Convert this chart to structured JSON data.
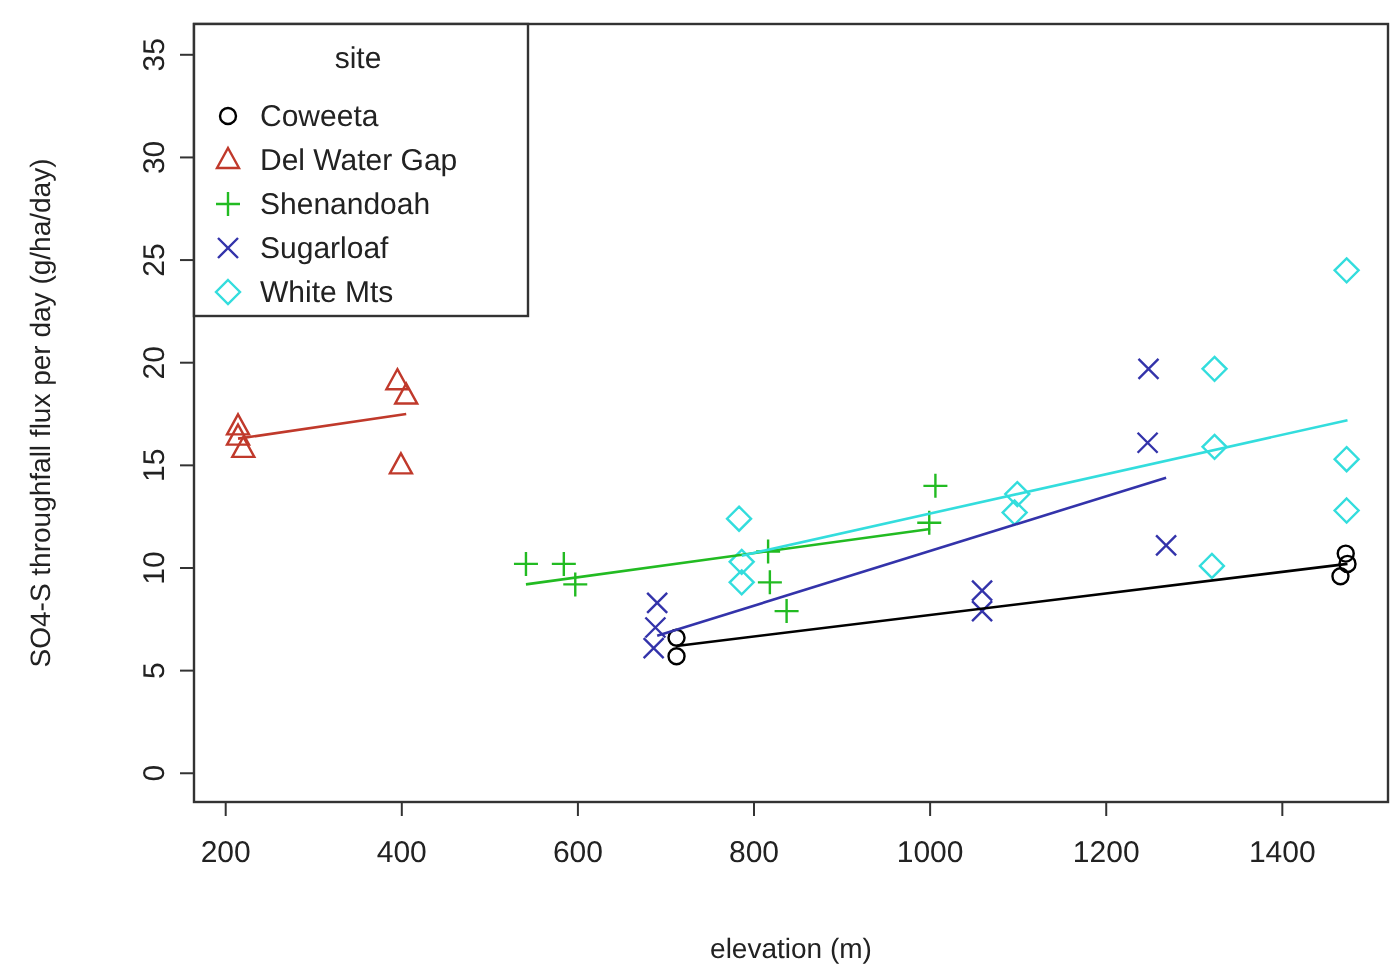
{
  "chart_data": {
    "type": "scatter",
    "xlabel": "elevation (m)",
    "ylabel": "SO4-S throughfall flux per day (g/ha/day)",
    "legend_title": "site",
    "legend": "top left",
    "grid": false,
    "xlim": [
      164,
      1520
    ],
    "ylim": [
      -1.4,
      36.5
    ],
    "xticks": [
      200,
      400,
      600,
      800,
      1000,
      1200,
      1400
    ],
    "yticks": [
      0,
      5,
      10,
      15,
      20,
      25,
      30,
      35
    ],
    "series": [
      {
        "name": "Coweeta",
        "color": "#000000",
        "marker": "circle",
        "x": [
          712,
          712,
          1472,
          1474,
          1466
        ],
        "values": [
          6.6,
          5.7,
          10.7,
          10.2,
          9.6
        ]
      },
      {
        "name": "Del Water Gap",
        "color": "#c0392b",
        "marker": "triangle",
        "x": [
          214,
          214,
          220,
          395,
          405,
          399
        ],
        "values": [
          16.9,
          16.4,
          15.8,
          19.1,
          18.4,
          15.0
        ]
      },
      {
        "name": "Shenandoah",
        "color": "#22bb22",
        "marker": "plus",
        "x": [
          541,
          584,
          597,
          816,
          818,
          837,
          1006,
          999
        ],
        "values": [
          10.2,
          10.2,
          9.2,
          10.8,
          9.3,
          7.9,
          14.0,
          12.2
        ]
      },
      {
        "name": "Sugarloaf",
        "color": "#3333aa",
        "marker": "cross",
        "x": [
          690,
          688,
          686,
          1059,
          1059,
          1248,
          1247,
          1268
        ],
        "values": [
          8.3,
          7.1,
          6.1,
          8.9,
          7.9,
          19.7,
          16.1,
          11.1
        ]
      },
      {
        "name": "White Mts",
        "color": "#33dddd",
        "marker": "diamond",
        "x": [
          783,
          786,
          786,
          1099,
          1096,
          1323,
          1323,
          1320,
          1473,
          1473,
          1473
        ],
        "values": [
          12.4,
          10.3,
          9.3,
          13.6,
          12.7,
          19.7,
          15.9,
          10.1,
          24.5,
          15.3,
          12.8
        ]
      },
      {
        "type": "line",
        "color": "#000000",
        "marker": "none",
        "x": [
          712,
          1474
        ],
        "values": [
          6.2,
          10.2
        ]
      },
      {
        "type": "line",
        "color": "#c0392b",
        "marker": "none",
        "x": [
          214,
          405
        ],
        "values": [
          16.3,
          17.5
        ]
      },
      {
        "type": "line",
        "color": "#22bb22",
        "marker": "none",
        "x": [
          541,
          1000
        ],
        "values": [
          9.2,
          11.9
        ]
      },
      {
        "type": "line",
        "color": "#3333aa",
        "marker": "none",
        "x": [
          690,
          1268
        ],
        "values": [
          6.7,
          14.4
        ]
      },
      {
        "type": "line",
        "color": "#33dddd",
        "marker": "none",
        "x": [
          786,
          1474
        ],
        "values": [
          10.6,
          17.2
        ]
      }
    ]
  }
}
